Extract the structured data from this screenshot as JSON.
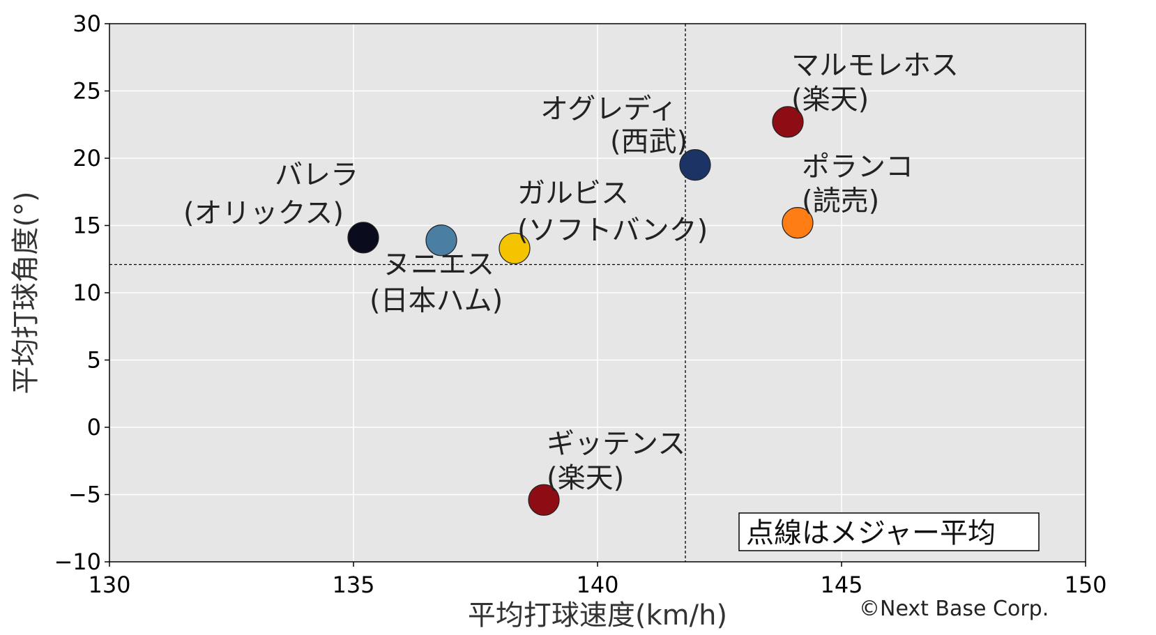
{
  "chart_data": {
    "type": "scatter",
    "xlabel": "平均打球速度(km/h)",
    "ylabel": "平均打球角度(°)",
    "xlim": [
      130,
      150
    ],
    "ylim": [
      -10,
      30
    ],
    "xticks": [
      "130",
      "135",
      "140",
      "145",
      "150"
    ],
    "yticks": [
      "−10",
      "−5",
      "0",
      "5",
      "10",
      "15",
      "20",
      "25",
      "30"
    ],
    "grid": true,
    "reference_lines": {
      "x": 141.8,
      "y": 12.1
    },
    "note": "点線はメジャー平均",
    "points": [
      {
        "name": "バレラ",
        "team": "(オリックス)",
        "x": 135.2,
        "y": 14.1,
        "color": "#0b0b1e"
      },
      {
        "name": "ヌニエス",
        "team": "(日本ハム)",
        "x": 136.8,
        "y": 13.9,
        "color": "#4a7fa3"
      },
      {
        "name": "ガルビス",
        "team": "(ソフトバンク)",
        "x": 138.3,
        "y": 13.3,
        "color": "#f5c400"
      },
      {
        "name": "オグレディ",
        "team": "(西武)",
        "x": 142.0,
        "y": 19.5,
        "color": "#1c3366"
      },
      {
        "name": "マルモレホス",
        "team": "(楽天)",
        "x": 143.9,
        "y": 22.7,
        "color": "#8e0c14"
      },
      {
        "name": "ポランコ",
        "team": "(読売)",
        "x": 144.1,
        "y": 15.2,
        "color": "#ff7d15"
      },
      {
        "name": "ギッテンス",
        "team": "(楽天)",
        "x": 138.9,
        "y": -5.4,
        "color": "#8e0c14"
      }
    ]
  },
  "copyright": "©Next Base Corp."
}
